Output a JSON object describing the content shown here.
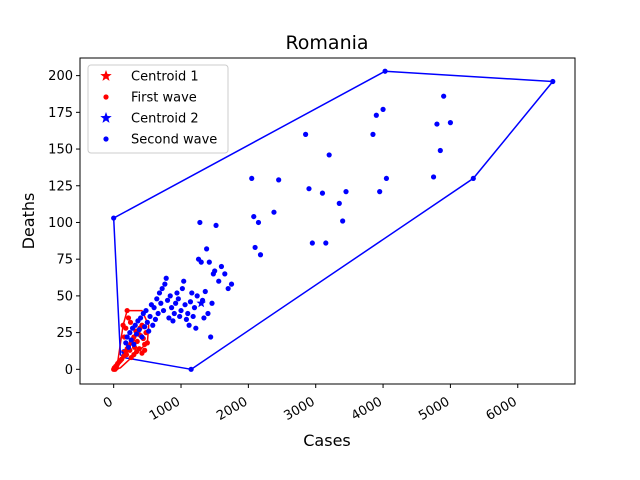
{
  "chart_data": {
    "type": "scatter",
    "title": "Romania",
    "xlabel": "Cases",
    "ylabel": "Deaths",
    "xlim": [
      -500,
      6850
    ],
    "ylim": [
      -10,
      212
    ],
    "xticks": [
      0,
      1000,
      2000,
      3000,
      4000,
      5000,
      6000
    ],
    "yticks": [
      0,
      25,
      50,
      75,
      100,
      125,
      150,
      175,
      200
    ],
    "legend_position": "top-left",
    "colors": {
      "first_wave": "#ff0000",
      "second_wave": "#0000ff"
    },
    "legend": [
      {
        "label": "Centroid 1",
        "marker": "star",
        "color": "#ff0000"
      },
      {
        "label": "First wave",
        "marker": "dot",
        "color": "#ff0000"
      },
      {
        "label": "Centroid 2",
        "marker": "star",
        "color": "#0000ff"
      },
      {
        "label": "Second wave",
        "marker": "dot",
        "color": "#0000ff"
      }
    ],
    "series": [
      {
        "name": "First wave",
        "color": "#ff0000",
        "hull": [
          [
            0,
            0
          ],
          [
            30,
            0
          ],
          [
            100,
            1
          ],
          [
            500,
            18
          ],
          [
            520,
            30
          ],
          [
            420,
            40
          ],
          [
            200,
            40
          ],
          [
            140,
            30
          ],
          [
            60,
            5
          ],
          [
            0,
            2
          ]
        ],
        "points": [
          [
            0,
            0
          ],
          [
            10,
            1
          ],
          [
            20,
            0
          ],
          [
            30,
            2
          ],
          [
            40,
            1
          ],
          [
            50,
            3
          ],
          [
            60,
            4
          ],
          [
            80,
            5
          ],
          [
            100,
            6
          ],
          [
            120,
            7
          ],
          [
            150,
            9
          ],
          [
            170,
            12
          ],
          [
            190,
            10
          ],
          [
            200,
            14
          ],
          [
            220,
            16
          ],
          [
            240,
            13
          ],
          [
            260,
            18
          ],
          [
            280,
            20
          ],
          [
            300,
            22
          ],
          [
            310,
            15
          ],
          [
            330,
            26
          ],
          [
            350,
            19
          ],
          [
            370,
            24
          ],
          [
            390,
            28
          ],
          [
            400,
            23
          ],
          [
            420,
            30
          ],
          [
            440,
            21
          ],
          [
            460,
            17
          ],
          [
            480,
            25
          ],
          [
            500,
            18
          ],
          [
            200,
            40
          ],
          [
            220,
            35
          ],
          [
            250,
            32
          ],
          [
            180,
            28
          ],
          [
            160,
            22
          ],
          [
            140,
            30
          ],
          [
            260,
            8
          ],
          [
            300,
            10
          ],
          [
            340,
            12
          ],
          [
            380,
            14
          ],
          [
            420,
            11
          ],
          [
            460,
            13
          ]
        ]
      },
      {
        "name": "Second wave",
        "color": "#0000ff",
        "hull": [
          [
            1150,
            0
          ],
          [
            5340,
            130
          ],
          [
            6520,
            196
          ],
          [
            4030,
            203
          ],
          [
            0,
            103
          ],
          [
            100,
            10
          ],
          [
            150,
            8
          ]
        ],
        "points": [
          [
            1150,
            0
          ],
          [
            0,
            103
          ],
          [
            4030,
            203
          ],
          [
            6520,
            196
          ],
          [
            5340,
            130
          ],
          [
            150,
            12
          ],
          [
            180,
            18
          ],
          [
            200,
            22
          ],
          [
            220,
            15
          ],
          [
            240,
            25
          ],
          [
            260,
            20
          ],
          [
            280,
            28
          ],
          [
            300,
            17
          ],
          [
            320,
            30
          ],
          [
            340,
            24
          ],
          [
            360,
            33
          ],
          [
            380,
            27
          ],
          [
            400,
            35
          ],
          [
            420,
            22
          ],
          [
            440,
            38
          ],
          [
            460,
            29
          ],
          [
            480,
            40
          ],
          [
            500,
            32
          ],
          [
            520,
            26
          ],
          [
            540,
            36
          ],
          [
            560,
            44
          ],
          [
            580,
            30
          ],
          [
            600,
            42
          ],
          [
            620,
            34
          ],
          [
            640,
            48
          ],
          [
            660,
            38
          ],
          [
            680,
            52
          ],
          [
            700,
            45
          ],
          [
            720,
            55
          ],
          [
            740,
            40
          ],
          [
            760,
            58
          ],
          [
            780,
            62
          ],
          [
            800,
            47
          ],
          [
            820,
            35
          ],
          [
            840,
            50
          ],
          [
            860,
            42
          ],
          [
            880,
            33
          ],
          [
            900,
            38
          ],
          [
            920,
            45
          ],
          [
            940,
            52
          ],
          [
            960,
            48
          ],
          [
            980,
            36
          ],
          [
            1000,
            40
          ],
          [
            1020,
            55
          ],
          [
            1040,
            60
          ],
          [
            1060,
            44
          ],
          [
            1080,
            34
          ],
          [
            1100,
            38
          ],
          [
            1120,
            30
          ],
          [
            1140,
            46
          ],
          [
            1160,
            52
          ],
          [
            1180,
            36
          ],
          [
            1200,
            42
          ],
          [
            1220,
            28
          ],
          [
            1240,
            50
          ],
          [
            1260,
            75
          ],
          [
            1280,
            100
          ],
          [
            1300,
            73
          ],
          [
            1320,
            47
          ],
          [
            1340,
            35
          ],
          [
            1360,
            53
          ],
          [
            1380,
            82
          ],
          [
            1400,
            38
          ],
          [
            1420,
            73
          ],
          [
            1440,
            22
          ],
          [
            1460,
            45
          ],
          [
            1480,
            65
          ],
          [
            1500,
            67
          ],
          [
            1520,
            98
          ],
          [
            1560,
            60
          ],
          [
            1600,
            70
          ],
          [
            1650,
            65
          ],
          [
            1700,
            55
          ],
          [
            1750,
            58
          ],
          [
            2050,
            130
          ],
          [
            2080,
            104
          ],
          [
            2100,
            83
          ],
          [
            2150,
            100
          ],
          [
            2180,
            78
          ],
          [
            2380,
            107
          ],
          [
            2450,
            129
          ],
          [
            2850,
            160
          ],
          [
            2900,
            123
          ],
          [
            2950,
            86
          ],
          [
            3100,
            120
          ],
          [
            3150,
            86
          ],
          [
            3200,
            146
          ],
          [
            3350,
            113
          ],
          [
            3400,
            101
          ],
          [
            3450,
            121
          ],
          [
            3850,
            160
          ],
          [
            3900,
            173
          ],
          [
            3950,
            121
          ],
          [
            4000,
            177
          ],
          [
            4050,
            130
          ],
          [
            4750,
            131
          ],
          [
            4800,
            167
          ],
          [
            4850,
            149
          ],
          [
            4900,
            186
          ],
          [
            5000,
            168
          ]
        ]
      }
    ],
    "centroids": [
      {
        "name": "Centroid 1",
        "x": 180,
        "y": 12,
        "color": "#ff0000"
      },
      {
        "name": "Centroid 2",
        "x": 1300,
        "y": 45,
        "color": "#0000ff"
      }
    ]
  }
}
